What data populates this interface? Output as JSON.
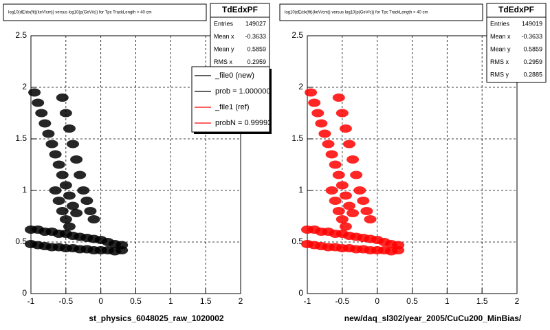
{
  "chart_data": [
    {
      "type": "scatter",
      "title": "log10(dE/dx(fit)(keV/cm)) versus log10(p(GeV/c)) for Tpc TrackLength > 40 cm",
      "x_label": "st_physics_6048025_raw_1020002",
      "color": "#000000",
      "x": [
        -0.95,
        -0.9,
        -0.85,
        -0.8,
        -0.75,
        -0.7,
        -0.65,
        -0.6,
        -0.55,
        -0.5,
        -0.45,
        -0.4,
        -0.35,
        -0.55,
        -0.5,
        -0.45,
        -0.4,
        -0.35,
        -0.3,
        -0.25,
        -0.2,
        -0.15,
        -0.1,
        -0.65,
        -0.6,
        -0.55,
        -0.5,
        -0.45,
        -1,
        -0.9,
        -0.8,
        -0.7,
        -0.6,
        -0.5,
        -0.4,
        -0.3,
        -0.2,
        -0.1,
        0,
        0.1,
        0.2,
        0.3,
        -1,
        -0.9,
        -0.8,
        -0.7,
        -0.6,
        -0.5,
        -0.4,
        -0.3,
        -0.2,
        -0.1,
        0,
        0.1,
        0.2,
        0.3
      ],
      "y": [
        1.95,
        1.85,
        1.75,
        1.65,
        1.55,
        1.45,
        1.35,
        1.25,
        1.15,
        1.05,
        0.95,
        0.85,
        0.78,
        1.9,
        1.75,
        1.6,
        1.45,
        1.3,
        1.15,
        1.0,
        0.9,
        0.8,
        0.72,
        1.0,
        0.9,
        0.8,
        0.72,
        0.65,
        0.62,
        0.62,
        0.6,
        0.6,
        0.58,
        0.58,
        0.56,
        0.55,
        0.54,
        0.53,
        0.52,
        0.5,
        0.48,
        0.47,
        0.48,
        0.47,
        0.46,
        0.45,
        0.45,
        0.44,
        0.44,
        0.43,
        0.43,
        0.42,
        0.42,
        0.42,
        0.41,
        0.42
      ],
      "xlim": [
        -1,
        2
      ],
      "ylim": [
        0,
        2.5
      ],
      "xticks": [
        -1,
        -0.5,
        0,
        0.5,
        1,
        1.5,
        2
      ],
      "yticks": [
        0,
        0.5,
        1,
        1.5,
        2,
        2.5
      ],
      "grid": true,
      "stats": {
        "title": "TdEdxPF",
        "rows": [
          [
            "Entries",
            "149027"
          ],
          [
            "Mean x",
            "-0.3633"
          ],
          [
            "Mean y",
            "0.5859"
          ],
          [
            "RMS x",
            "0.2959"
          ]
        ]
      },
      "legend": [
        {
          "label": "_file0 (new)",
          "color": "#000000"
        },
        {
          "label": "prob = 1.000000",
          "color": "#000000"
        },
        {
          "label": "_file1 (ref)",
          "color": "#ff0000"
        },
        {
          "label": "probN = 0.99993",
          "color": "#ff0000"
        }
      ]
    },
    {
      "type": "scatter",
      "title": "log10(dE/dx(fit)(keV/cm)) versus log10(p(GeV/c)) for Tpc TrackLength > 40 cm",
      "x_label": "new/daq_sl302/year_2005/CuCu200_MinBias/",
      "color": "#ff0000",
      "x": [
        -0.95,
        -0.9,
        -0.85,
        -0.8,
        -0.75,
        -0.7,
        -0.65,
        -0.6,
        -0.55,
        -0.5,
        -0.45,
        -0.4,
        -0.35,
        -0.55,
        -0.5,
        -0.45,
        -0.4,
        -0.35,
        -0.3,
        -0.25,
        -0.2,
        -0.15,
        -0.1,
        -0.65,
        -0.6,
        -0.55,
        -0.5,
        -0.45,
        -1,
        -0.9,
        -0.8,
        -0.7,
        -0.6,
        -0.5,
        -0.4,
        -0.3,
        -0.2,
        -0.1,
        0,
        0.1,
        0.2,
        0.3,
        -1,
        -0.9,
        -0.8,
        -0.7,
        -0.6,
        -0.5,
        -0.4,
        -0.3,
        -0.2,
        -0.1,
        0,
        0.1,
        0.2,
        0.3
      ],
      "y": [
        1.95,
        1.85,
        1.75,
        1.65,
        1.55,
        1.45,
        1.35,
        1.25,
        1.15,
        1.05,
        0.95,
        0.85,
        0.78,
        1.9,
        1.75,
        1.6,
        1.45,
        1.3,
        1.15,
        1.0,
        0.9,
        0.8,
        0.72,
        1.0,
        0.9,
        0.8,
        0.72,
        0.65,
        0.62,
        0.62,
        0.6,
        0.6,
        0.58,
        0.58,
        0.56,
        0.55,
        0.54,
        0.53,
        0.52,
        0.5,
        0.48,
        0.47,
        0.48,
        0.47,
        0.46,
        0.45,
        0.45,
        0.44,
        0.44,
        0.43,
        0.43,
        0.42,
        0.42,
        0.42,
        0.41,
        0.42
      ],
      "xlim": [
        -1,
        2
      ],
      "ylim": [
        0,
        2.5
      ],
      "xticks": [
        -1,
        -0.5,
        0,
        0.5,
        1,
        1.5,
        2
      ],
      "yticks": [
        0,
        0.5,
        1,
        1.5,
        2,
        2.5
      ],
      "grid": true,
      "stats": {
        "title": "TdEdxPF",
        "rows": [
          [
            "Entries",
            "149019"
          ],
          [
            "Mean x",
            "-0.3633"
          ],
          [
            "Mean y",
            "0.5859"
          ],
          [
            "RMS x",
            "0.2959"
          ],
          [
            "RMS y",
            "0.2885"
          ]
        ]
      }
    }
  ]
}
